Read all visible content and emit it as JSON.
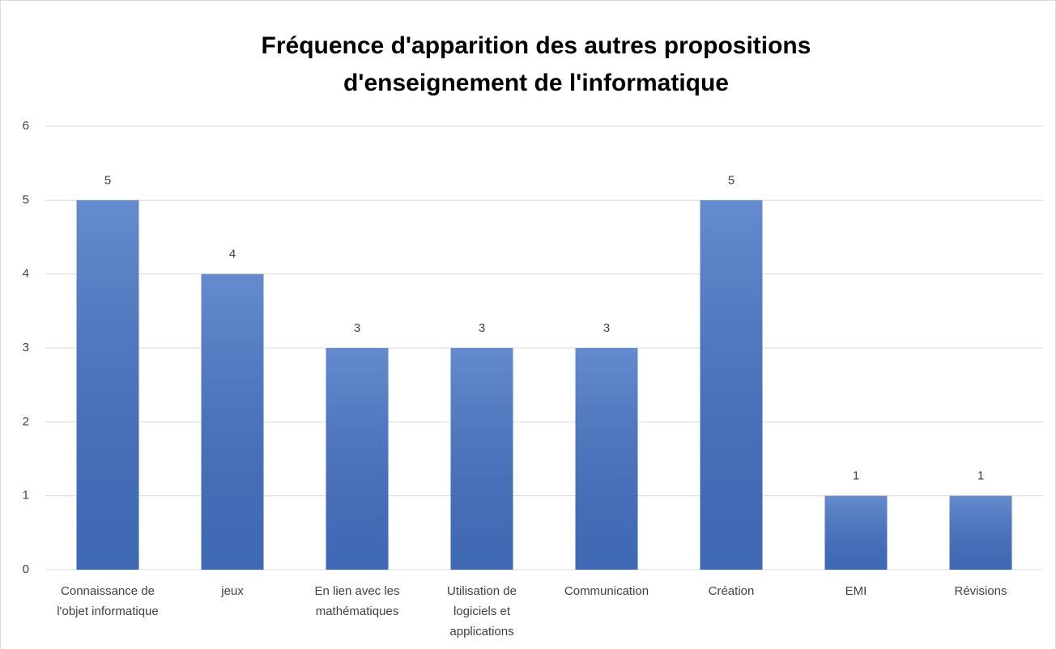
{
  "chart_data": {
    "type": "bar",
    "title": [
      "Fréquence d'apparition  des autres propositions",
      "d'enseignement de l'informatique"
    ],
    "categories": [
      "Connaissance de l'objet informatique",
      "jeux",
      "En lien avec les mathématiques",
      "Utilisation de logiciels et applications",
      "Communication",
      "Création",
      "EMI",
      "Révisions"
    ],
    "values": [
      5,
      4,
      3,
      3,
      3,
      5,
      1,
      1
    ],
    "color": "#4472c4",
    "ylim": [
      0,
      6
    ],
    "yticks": [
      0,
      1,
      2,
      3,
      4,
      5,
      6
    ],
    "grid": true,
    "data_labels": true
  }
}
